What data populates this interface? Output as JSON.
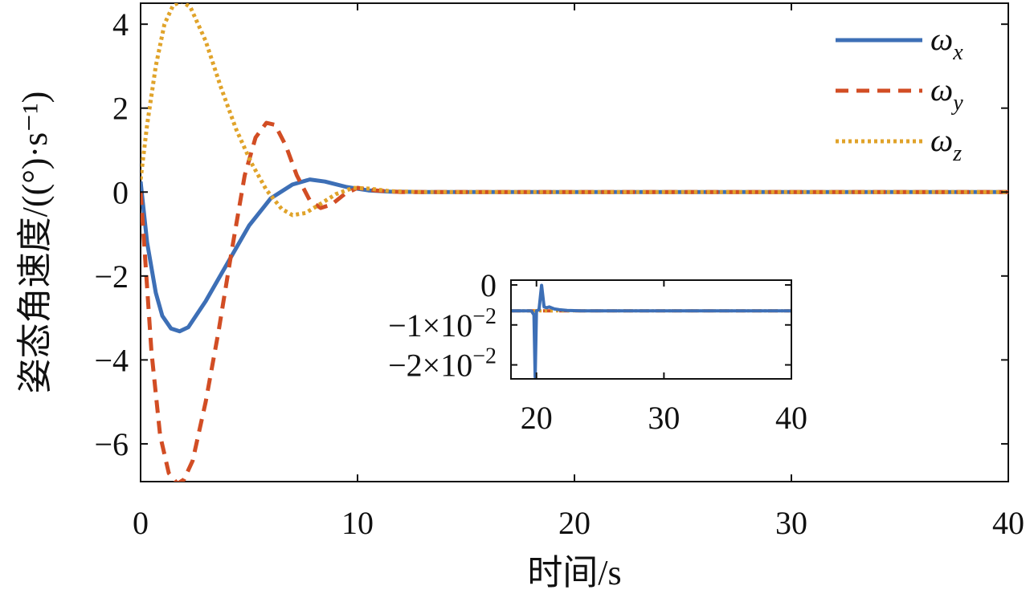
{
  "chart_data": [
    {
      "type": "line",
      "xlabel": "时间/s",
      "ylabel": "姿态角速度/((°)·s⁻¹)",
      "xlim": [
        0,
        40
      ],
      "ylim": [
        -6.9,
        4.5
      ],
      "xticks": [
        0,
        10,
        20,
        30,
        40
      ],
      "xtick_labels": [
        "0",
        "10",
        "20",
        "30",
        "40"
      ],
      "yticks": [
        4,
        2,
        0,
        -2,
        -4,
        -6
      ],
      "ytick_labels": [
        "4",
        "2",
        "0",
        "−2",
        "−4",
        "−6"
      ],
      "grid": false,
      "legend_position": "top-right",
      "series": [
        {
          "name": "ωx",
          "legend_main": "ω",
          "legend_sub": "x",
          "color": "#3d6fb6",
          "style": "solid",
          "x": [
            0,
            0.3,
            0.7,
            1.0,
            1.4,
            1.8,
            2.2,
            3,
            4,
            5,
            6,
            7,
            7.8,
            8.5,
            9.5,
            10.5,
            11.5,
            13,
            20,
            30,
            40
          ],
          "y": [
            0.25,
            -1.2,
            -2.4,
            -2.95,
            -3.25,
            -3.32,
            -3.22,
            -2.6,
            -1.7,
            -0.8,
            -0.15,
            0.18,
            0.3,
            0.25,
            0.12,
            0.04,
            0.01,
            0.0,
            0.0,
            0.0,
            0.0
          ]
        },
        {
          "name": "ωy",
          "legend_main": "ω",
          "legend_sub": "y",
          "color": "#d24d24",
          "style": "dashed",
          "x": [
            0,
            0.2,
            0.5,
            0.9,
            1.3,
            1.7,
            2.0,
            2.4,
            3,
            3.6,
            4.2,
            4.8,
            5.3,
            5.8,
            6.2,
            6.7,
            7.2,
            7.8,
            8.3,
            8.8,
            9.4,
            10,
            10.8,
            12,
            20,
            30,
            40
          ],
          "y": [
            0,
            -1.5,
            -3.8,
            -5.8,
            -6.7,
            -6.95,
            -6.85,
            -6.4,
            -5.0,
            -3.3,
            -1.4,
            0.4,
            1.3,
            1.65,
            1.6,
            1.1,
            0.4,
            -0.2,
            -0.38,
            -0.3,
            -0.05,
            0.1,
            0.04,
            0.0,
            0.0,
            0.0,
            0.0
          ]
        },
        {
          "name": "ωz",
          "legend_main": "ω",
          "legend_sub": "z",
          "color": "#e0a32a",
          "style": "dotted",
          "x": [
            0,
            0.3,
            0.7,
            1.1,
            1.5,
            1.9,
            2.3,
            3,
            3.7,
            4.4,
            5.1,
            5.8,
            6.5,
            7.0,
            7.6,
            8.3,
            9,
            9.8,
            10.6,
            11.5,
            13,
            20,
            30,
            40
          ],
          "y": [
            0.3,
            1.6,
            3.0,
            4.0,
            4.45,
            4.55,
            4.4,
            3.6,
            2.5,
            1.5,
            0.7,
            0.05,
            -0.4,
            -0.55,
            -0.5,
            -0.28,
            -0.05,
            0.1,
            0.08,
            0.02,
            0.0,
            0.0,
            0.0,
            0.0
          ]
        }
      ]
    },
    {
      "type": "line",
      "inset": true,
      "xlim": [
        18,
        40
      ],
      "ylim": [
        -0.0235,
        0.0012
      ],
      "xticks": [
        20,
        30,
        40
      ],
      "xtick_labels": [
        "20",
        "30",
        "40"
      ],
      "yticks": [
        0,
        -0.01,
        -0.02
      ],
      "ytick_labels": [
        {
          "base": "0",
          "exp": ""
        },
        {
          "base": "−1×10",
          "exp": "−2"
        },
        {
          "base": "−2×10",
          "exp": "−2"
        }
      ],
      "series": [
        {
          "name": "ωy",
          "color": "#d24d24",
          "style": "dashed",
          "x": [
            18,
            40
          ],
          "y": [
            -0.0065,
            -0.0065
          ]
        },
        {
          "name": "ωz",
          "color": "#e0a32a",
          "style": "dotted",
          "x": [
            18,
            40
          ],
          "y": [
            -0.0065,
            -0.0065
          ]
        },
        {
          "name": "ωx",
          "color": "#3d6fb6",
          "style": "solid",
          "x": [
            18,
            19.6,
            19.8,
            19.9,
            20.0,
            20.2,
            20.4,
            20.6,
            20.8,
            21.0,
            21.4,
            21.8,
            22.4,
            23.5,
            25,
            30,
            40
          ],
          "y": [
            -0.0065,
            -0.0065,
            -0.0075,
            -0.023,
            -0.0065,
            -0.0062,
            -0.0001,
            -0.0055,
            -0.0057,
            -0.0055,
            -0.006,
            -0.0062,
            -0.0064,
            -0.0065,
            -0.0065,
            -0.0065,
            -0.0065
          ]
        }
      ]
    }
  ]
}
